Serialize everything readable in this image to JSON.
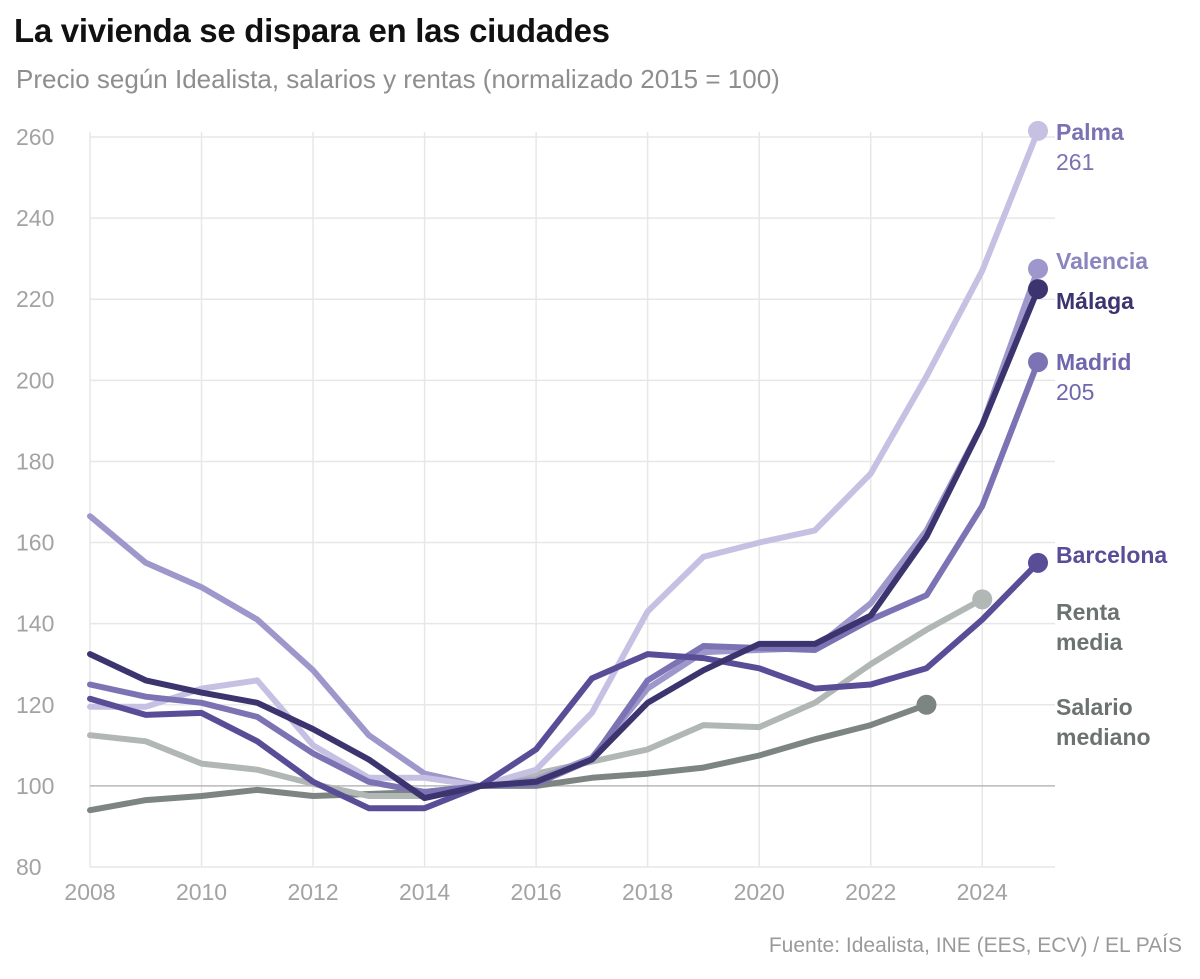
{
  "chart_data": {
    "type": "line",
    "title": "La vivienda se dispara en las ciudades",
    "subtitle": "Precio según Idealista, salarios y rentas (normalizado 2015 = 100)",
    "source": "Fuente: Idealista, INE (EES, ECV) / EL PAÍS",
    "xlim": [
      2008,
      2025
    ],
    "ylim": [
      80,
      260
    ],
    "x_ticks": [
      2008,
      2010,
      2012,
      2014,
      2016,
      2018,
      2020,
      2022,
      2024
    ],
    "y_ticks": [
      80,
      100,
      120,
      140,
      160,
      180,
      200,
      220,
      240,
      260
    ],
    "grid": true,
    "series": [
      {
        "name": "Salario mediano",
        "label_lines": [
          "Salario",
          "mediano"
        ],
        "color": "#7d8583",
        "label_color": "#6b7270",
        "x": [
          2008,
          2009,
          2010,
          2011,
          2012,
          2013,
          2014,
          2015,
          2016,
          2017,
          2018,
          2019,
          2020,
          2021,
          2022,
          2023
        ],
        "y": [
          94,
          96.5,
          97.5,
          99,
          97.5,
          98,
          98.5,
          100,
          100,
          102,
          103,
          104.5,
          107.5,
          111.5,
          115,
          120
        ]
      },
      {
        "name": "Renta media",
        "label_lines": [
          "Renta",
          "media"
        ],
        "color": "#b0b7b5",
        "label_color": "#6b7270",
        "x": [
          2008,
          2009,
          2010,
          2011,
          2012,
          2013,
          2014,
          2015,
          2016,
          2017,
          2018,
          2019,
          2020,
          2021,
          2022,
          2023,
          2024
        ],
        "y": [
          112.5,
          111,
          105.5,
          104,
          100.5,
          97.5,
          97.5,
          100,
          103,
          106,
          109,
          115,
          114.5,
          120.5,
          130,
          138.5,
          146
        ]
      },
      {
        "name": "Valencia",
        "label_lines": [
          "Valencia"
        ],
        "color": "#9d97cb",
        "label_color": "#8a84bf",
        "x": [
          2008,
          2009,
          2010,
          2011,
          2012,
          2013,
          2014,
          2015,
          2016,
          2017,
          2018,
          2019,
          2020,
          2021,
          2022,
          2023,
          2024,
          2025
        ],
        "y": [
          166.5,
          155,
          149,
          141,
          128.5,
          112.5,
          103,
          100,
          101.5,
          107,
          124,
          133,
          133.5,
          134,
          145,
          163,
          189,
          227.5
        ]
      },
      {
        "name": "Palma",
        "label_lines": [
          "Palma"
        ],
        "value_label": "261",
        "color": "#c6c1e3",
        "label_color": "#7a72b2",
        "x": [
          2008,
          2009,
          2010,
          2011,
          2012,
          2013,
          2014,
          2015,
          2016,
          2017,
          2018,
          2019,
          2020,
          2021,
          2022,
          2023,
          2024,
          2025
        ],
        "y": [
          119.5,
          119.5,
          124,
          126,
          110,
          102,
          102,
          100,
          104,
          118,
          143,
          156.5,
          160,
          163,
          177,
          201,
          227,
          261.5
        ]
      },
      {
        "name": "Madrid",
        "label_lines": [
          "Madrid"
        ],
        "value_label": "205",
        "color": "#7c73b5",
        "label_color": "#6f66ad",
        "x": [
          2008,
          2009,
          2010,
          2011,
          2012,
          2013,
          2014,
          2015,
          2016,
          2017,
          2018,
          2019,
          2020,
          2021,
          2022,
          2023,
          2024,
          2025
        ],
        "y": [
          125,
          122,
          120.5,
          117,
          108,
          101,
          98.5,
          100,
          100.5,
          106.5,
          126,
          134.5,
          134,
          133.5,
          141,
          147,
          169,
          204.5
        ]
      },
      {
        "name": "Barcelona",
        "label_lines": [
          "Barcelona"
        ],
        "color": "#594d97",
        "label_color": "#594d97",
        "x": [
          2008,
          2009,
          2010,
          2011,
          2012,
          2013,
          2014,
          2015,
          2016,
          2017,
          2018,
          2019,
          2020,
          2021,
          2022,
          2023,
          2024,
          2025
        ],
        "y": [
          121.5,
          117.5,
          118,
          111,
          101,
          94.5,
          94.5,
          100,
          109,
          126.5,
          132.5,
          131.5,
          129,
          124,
          125,
          129,
          141,
          155
        ]
      },
      {
        "name": "Málaga",
        "label_lines": [
          "Málaga"
        ],
        "color": "#3b346f",
        "label_color": "#3b346f",
        "x": [
          2008,
          2009,
          2010,
          2011,
          2012,
          2013,
          2014,
          2015,
          2016,
          2017,
          2018,
          2019,
          2020,
          2021,
          2022,
          2023,
          2024,
          2025
        ],
        "y": [
          132.5,
          126,
          123,
          120.5,
          114,
          106.5,
          97,
          100,
          101,
          106.5,
          120.5,
          128.5,
          135,
          135,
          142,
          161.5,
          189,
          222.5
        ]
      }
    ]
  }
}
